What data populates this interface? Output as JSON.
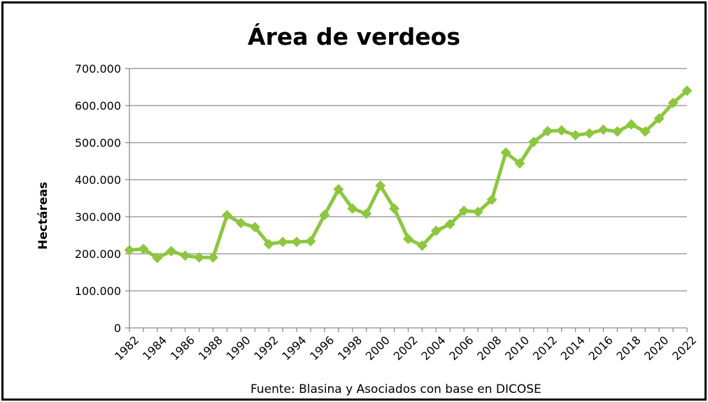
{
  "chart_data": {
    "type": "line",
    "title": "Área de verdeos",
    "ylabel": "Hectáreas",
    "xlabel": "",
    "source": "Fuente: Blasina y Asociados con base en DICOSE",
    "ylim": [
      0,
      700000
    ],
    "xlim": [
      1982,
      2022
    ],
    "grid": true,
    "color": "#8dc63f",
    "y_ticks": [
      {
        "value": 0,
        "label": "0"
      },
      {
        "value": 100000,
        "label": "100.000"
      },
      {
        "value": 200000,
        "label": "200.000"
      },
      {
        "value": 300000,
        "label": "300.000"
      },
      {
        "value": 400000,
        "label": "400.000"
      },
      {
        "value": 500000,
        "label": "500.000"
      },
      {
        "value": 600000,
        "label": "600.000"
      },
      {
        "value": 700000,
        "label": "700.000"
      }
    ],
    "x_tick_labels": [
      "1982",
      "1984",
      "1986",
      "1988",
      "1990",
      "1992",
      "1994",
      "1996",
      "1998",
      "2000",
      "2002",
      "2004",
      "2006",
      "2008",
      "2010",
      "2012",
      "2014",
      "2016",
      "2018",
      "2020",
      "2022"
    ],
    "series": [
      {
        "x": [
          1982,
          1983,
          1984,
          1985,
          1986,
          1987,
          1988,
          1989,
          1990,
          1991,
          1992,
          1993,
          1994,
          1995,
          1996,
          1997,
          1998,
          1999,
          2000,
          2001,
          2002,
          2003,
          2004,
          2005,
          2006,
          2007,
          2008,
          2009,
          2010,
          2011,
          2012,
          2013,
          2014,
          2015,
          2016,
          2017,
          2018,
          2019,
          2020,
          2021,
          2022
        ],
        "values": [
          210000,
          213000,
          189000,
          207000,
          195000,
          190000,
          190000,
          304000,
          283000,
          272000,
          226000,
          232000,
          232000,
          234000,
          305000,
          374000,
          322000,
          308000,
          384000,
          322000,
          240000,
          222000,
          262000,
          280000,
          316000,
          313000,
          346000,
          473000,
          444000,
          502000,
          531000,
          533000,
          520000,
          525000,
          535000,
          530000,
          549000,
          530000,
          565000,
          607000,
          640000
        ]
      }
    ]
  }
}
